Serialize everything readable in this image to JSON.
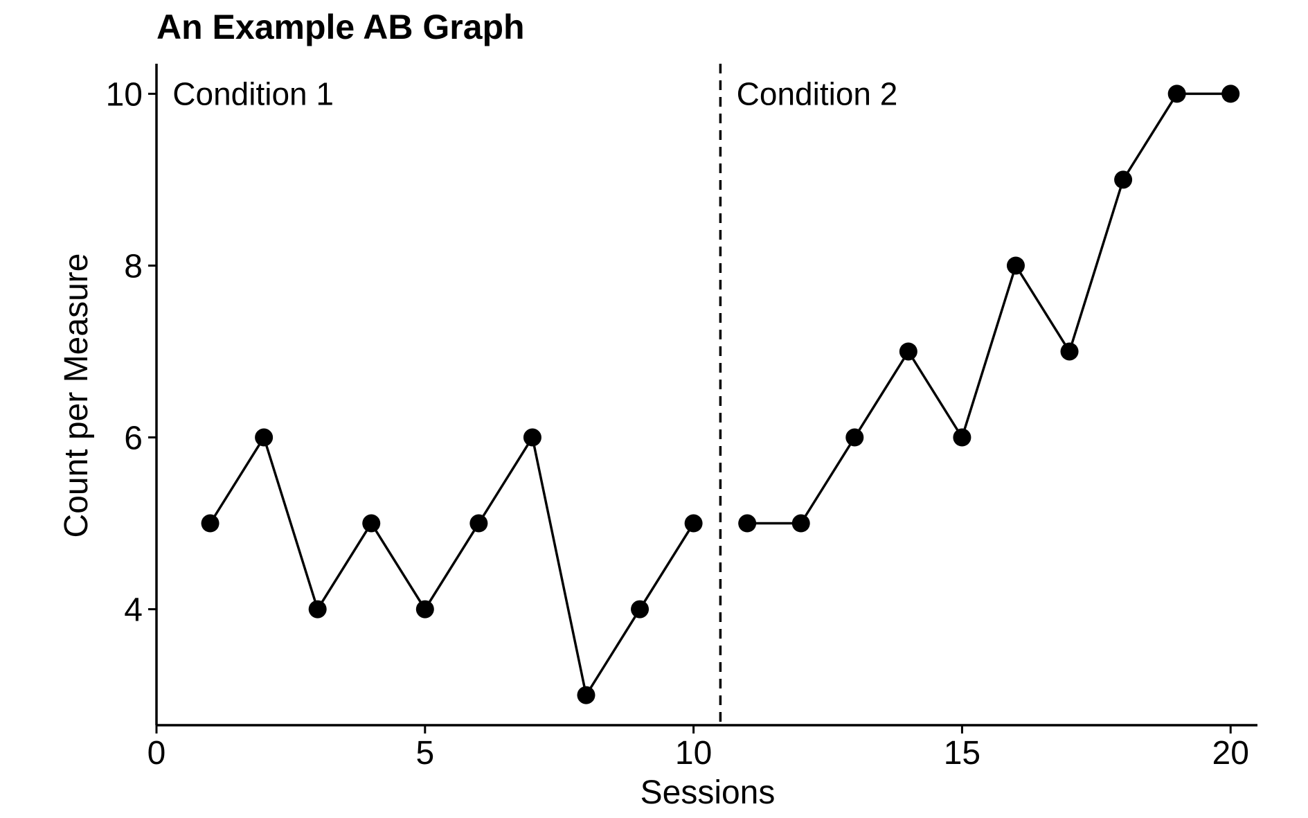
{
  "chart_data": {
    "type": "line",
    "title": "An Example AB Graph",
    "xlabel": "Sessions",
    "ylabel": "Count per Measure",
    "xlim": [
      0,
      20.5
    ],
    "ylim": [
      2.65,
      10.35
    ],
    "xticks": [
      0,
      5,
      10,
      15,
      20
    ],
    "yticks": [
      4,
      6,
      8,
      10
    ],
    "grid": false,
    "legend": "none",
    "phase_change_x": 10.5,
    "phase_labels": [
      {
        "text": "Condition 1",
        "x": 0.3,
        "y": 10
      },
      {
        "text": "Condition 2",
        "x": 10.8,
        "y": 10
      }
    ],
    "series": [
      {
        "x": [
          1,
          2,
          3,
          4,
          5,
          6,
          7,
          8,
          9,
          10
        ],
        "values": [
          5,
          6,
          4,
          5,
          4,
          5,
          6,
          3,
          4,
          5
        ]
      },
      {
        "x": [
          11,
          12,
          13,
          14,
          15,
          16,
          17,
          18,
          19,
          20
        ],
        "values": [
          5,
          5,
          6,
          7,
          6,
          8,
          7,
          9,
          10,
          10
        ]
      }
    ],
    "colors": {
      "line": "#000000",
      "marker": "#000000",
      "axis": "#000000"
    }
  }
}
